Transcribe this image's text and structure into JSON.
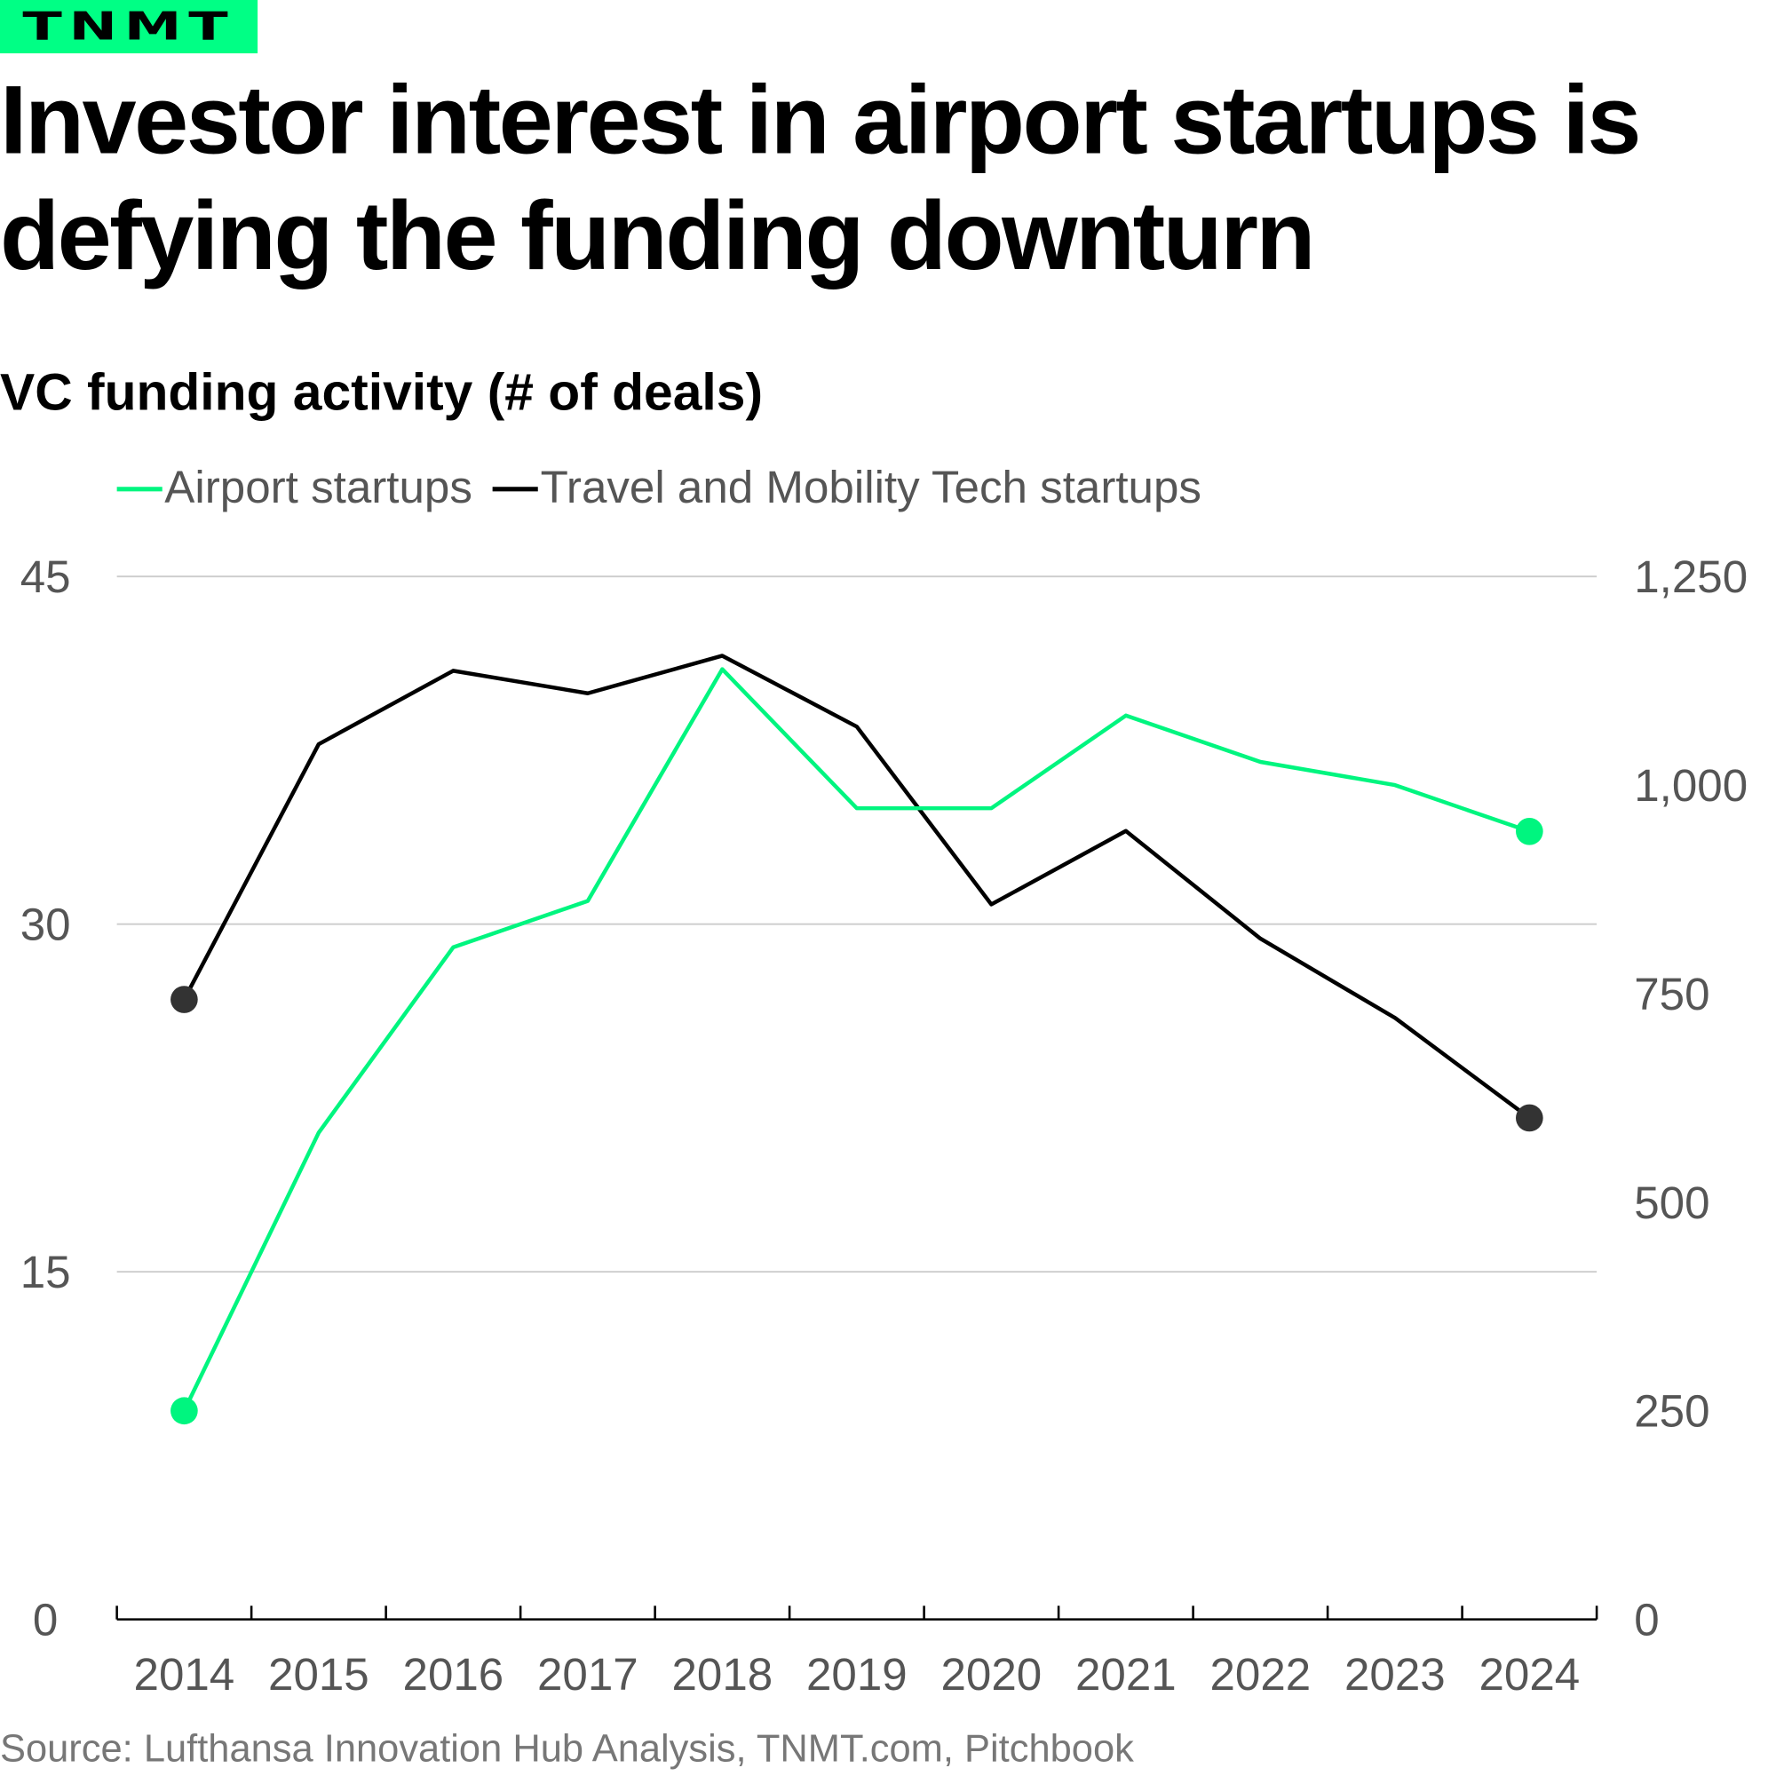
{
  "logo": "TNMT",
  "title": "Investor interest in airport startups is defying the funding downturn",
  "colors": {
    "airport": "#00f57f",
    "travel": "#000000",
    "grid": "#cccccc",
    "logo_bg": "#00ff85"
  },
  "chart_data": {
    "type": "line",
    "title": "VC funding activity (# of deals)",
    "x": [
      2014,
      2015,
      2016,
      2017,
      2018,
      2019,
      2020,
      2021,
      2022,
      2023,
      2024
    ],
    "series": [
      {
        "name": "Airport startups",
        "axis": "left",
        "values": [
          9,
          21,
          29,
          31,
          41,
          35,
          35,
          39,
          37,
          36,
          34
        ]
      },
      {
        "name": "Travel and Mobility Tech startups",
        "axis": "right",
        "values": [
          743,
          1049,
          1137,
          1110,
          1155,
          1070,
          857,
          945,
          816,
          721,
          601
        ]
      }
    ],
    "left_axis": {
      "ylim": [
        0,
        45
      ],
      "ticks": [
        "0",
        "15",
        "30",
        "45"
      ]
    },
    "right_axis": {
      "ylim": [
        0,
        1250
      ],
      "ticks": [
        "0",
        "250",
        "500",
        "750",
        "1,000",
        "1,250"
      ]
    },
    "x_ticks": [
      "2014",
      "2015",
      "2016",
      "2017",
      "2018",
      "2019",
      "2020",
      "2021",
      "2022",
      "2023",
      "2024"
    ],
    "grid": true,
    "legend": "top-left"
  },
  "source": "Source: Lufthansa Innovation Hub Analysis, TNMT.com, Pitchbook"
}
